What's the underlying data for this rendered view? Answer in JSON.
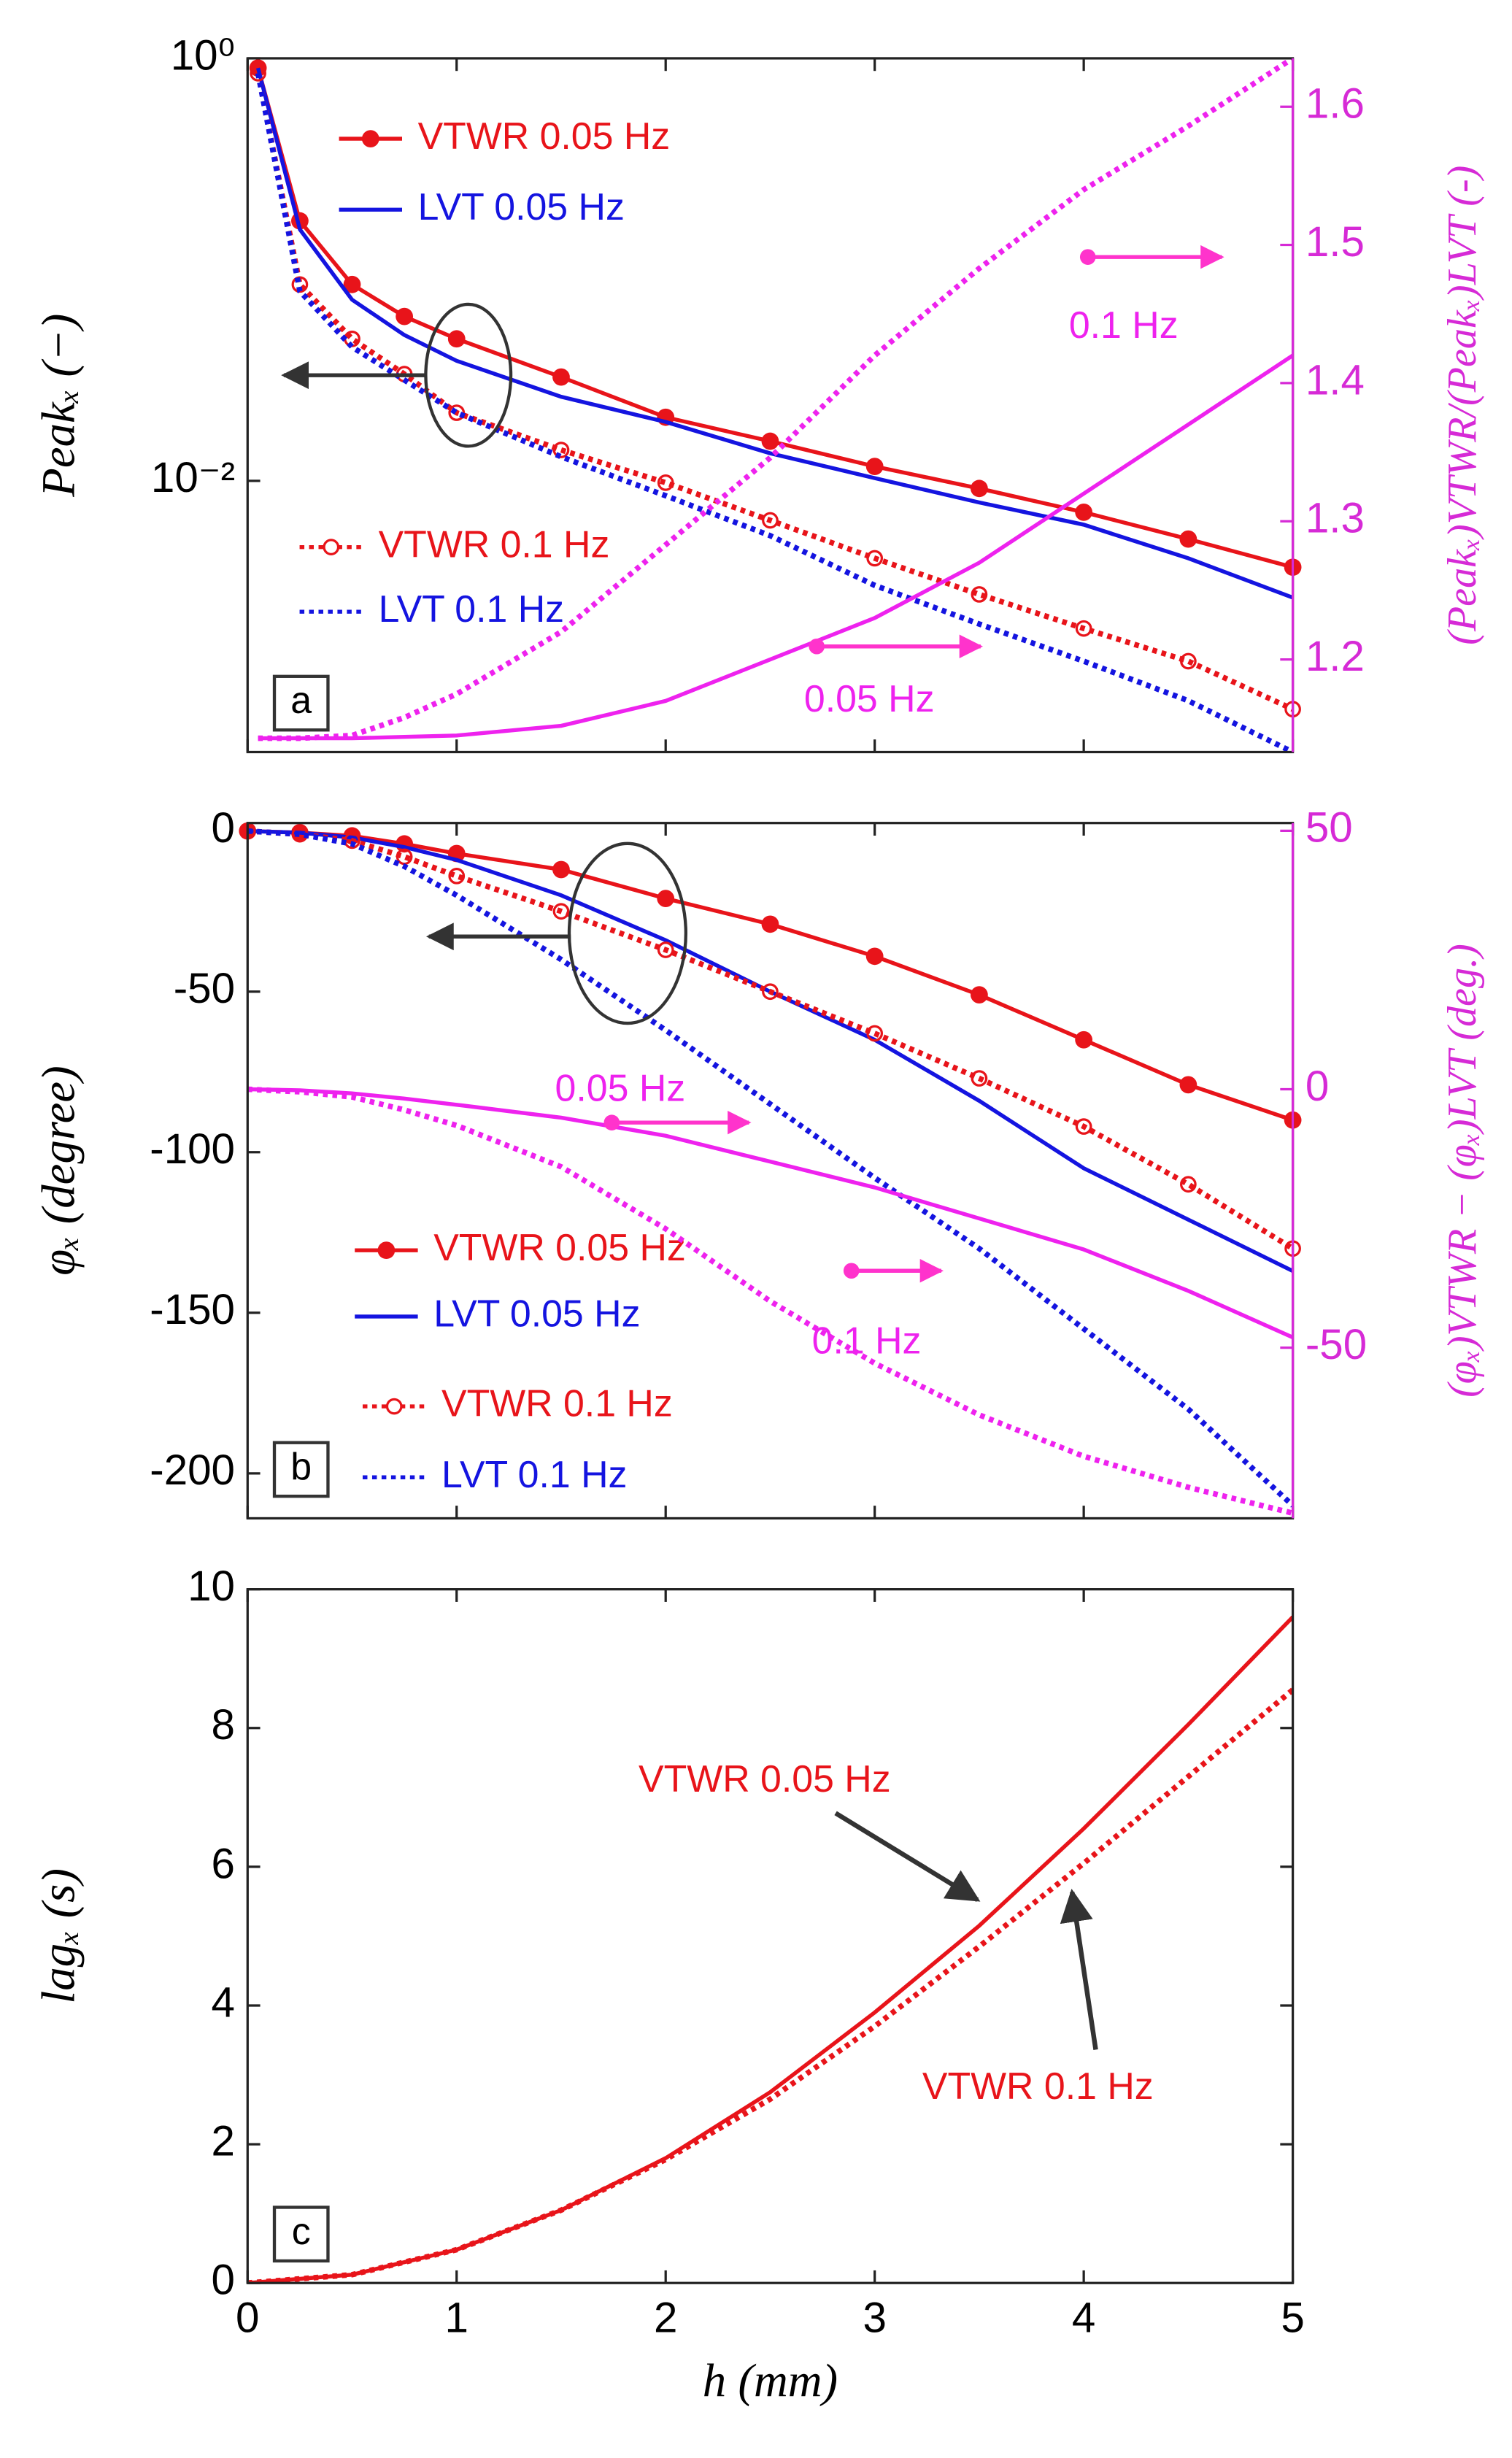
{
  "chart_data": [
    {
      "type": "line",
      "panel_label": "a",
      "ylabel": "Peakₓ (−)",
      "y2label": "(Peakₓ)VTWR/(Peakₓ)LVT (-)",
      "log_y": true,
      "xtick_labels": false,
      "y2color": "#d62ad6",
      "x": [
        0.05,
        0.25,
        0.5,
        0.75,
        1,
        1.5,
        2,
        2.5,
        3,
        3.5,
        4,
        4.5,
        5
      ],
      "xlim": [
        0,
        5
      ],
      "xticks": [
        0,
        1,
        2,
        3,
        4,
        5
      ],
      "ylim": [
        0.00052,
        1
      ],
      "yticks": [
        {
          "value": 1,
          "label": "10⁰"
        },
        {
          "value": 0.01,
          "label": "10⁻²"
        }
      ],
      "y2lim": [
        1.133,
        1.635
      ],
      "y2ticks": [
        1.2,
        1.3,
        1.4,
        1.5,
        1.6
      ],
      "series": [
        {
          "name": "VTWR 0.05 Hz",
          "color": "#e8141a",
          "style": "solid",
          "marker": "filled",
          "axis": "y",
          "values": [
            0.9,
            0.17,
            0.085,
            0.06,
            0.047,
            0.031,
            0.02,
            0.0154,
            0.0117,
            0.0092,
            0.0071,
            0.0053,
            0.0039
          ]
        },
        {
          "name": "LVT 0.05 Hz",
          "color": "#1414e0",
          "style": "solid",
          "marker": "none",
          "axis": "y",
          "values": [
            0.9,
            0.155,
            0.072,
            0.049,
            0.037,
            0.025,
            0.019,
            0.0135,
            0.0103,
            0.0079,
            0.0062,
            0.0043,
            0.0028
          ]
        },
        {
          "name": "VTWR 0.1 Hz",
          "color": "#e8141a",
          "style": "dotted",
          "marker": "open",
          "axis": "y",
          "values": [
            0.85,
            0.085,
            0.047,
            0.032,
            0.021,
            0.014,
            0.0098,
            0.0065,
            0.0043,
            0.0029,
            0.002,
            0.0014,
            0.00083
          ]
        },
        {
          "name": "LVT 0.1 Hz",
          "color": "#1414e0",
          "style": "dotted",
          "marker": "none",
          "axis": "y",
          "values": [
            0.85,
            0.079,
            0.043,
            0.03,
            0.021,
            0.013,
            0.0085,
            0.0055,
            0.0032,
            0.0021,
            0.0014,
            0.00091,
            0.00052
          ]
        },
        {
          "name": "0.05 Hz",
          "color": "#ee22ee",
          "style": "solid",
          "marker": "none",
          "axis": "y2",
          "values": [
            1.143,
            1.143,
            1.143,
            1.144,
            1.145,
            1.152,
            1.17,
            1.2,
            1.23,
            1.27,
            1.32,
            1.37,
            1.42
          ]
        },
        {
          "name": "0.1 Hz",
          "color": "#ee22ee",
          "style": "dotted",
          "marker": "none",
          "axis": "y2",
          "values": [
            1.143,
            1.143,
            1.145,
            1.158,
            1.175,
            1.22,
            1.283,
            1.346,
            1.42,
            1.483,
            1.54,
            1.586,
            1.635
          ]
        }
      ]
    },
    {
      "type": "line",
      "panel_label": "b",
      "ylabel": "φₓ  (degree)",
      "y2label": "(φₓ)VTWR − (φₓ)LVT  (deg.)",
      "log_y": false,
      "xtick_labels": false,
      "y2color": "#d62ad6",
      "x": [
        0,
        0.25,
        0.5,
        0.75,
        1,
        1.5,
        2,
        2.5,
        3,
        3.5,
        4,
        4.5,
        5
      ],
      "xlim": [
        0,
        5
      ],
      "xticks": [
        0,
        1,
        2,
        3,
        4,
        5
      ],
      "ylim": [
        -214,
        2.5
      ],
      "yticks": [
        0,
        -50,
        -100,
        -150,
        -200
      ],
      "y2lim": [
        -83,
        51.5
      ],
      "y2ticks": [
        50,
        0,
        -50
      ],
      "series": [
        {
          "name": "VTWR 0.05 Hz",
          "color": "#e8141a",
          "style": "solid",
          "marker": "filled",
          "axis": "y",
          "values": [
            0,
            -0.5,
            -1.5,
            -4,
            -7,
            -12,
            -21,
            -29,
            -39,
            -51,
            -65,
            -79,
            -90
          ]
        },
        {
          "name": "LVT 0.05 Hz",
          "color": "#1414e0",
          "style": "solid",
          "marker": "none",
          "axis": "y",
          "values": [
            0,
            -0.5,
            -2,
            -5,
            -9,
            -20,
            -34,
            -50,
            -65,
            -84,
            -105,
            -121,
            -137
          ]
        },
        {
          "name": "VTWR 0.1 Hz",
          "color": "#e8141a",
          "style": "dotted",
          "marker": "open",
          "axis": "y",
          "values": [
            0,
            -1,
            -3,
            -8,
            -14,
            -25,
            -37,
            -50,
            -63,
            -77,
            -92,
            -110,
            -130
          ]
        },
        {
          "name": "LVT 0.1 Hz",
          "color": "#1414e0",
          "style": "dotted",
          "marker": "none",
          "axis": "y",
          "values": [
            0,
            -1,
            -4,
            -11,
            -20,
            -40,
            -62,
            -85,
            -108,
            -130,
            -155,
            -180,
            -210
          ]
        },
        {
          "name": "0.05 Hz",
          "color": "#ee22ee",
          "style": "solid",
          "marker": "none",
          "axis": "y2",
          "values": [
            0,
            -0.2,
            -0.8,
            -1.8,
            -3,
            -5.5,
            -9,
            -14,
            -19,
            -25,
            -31,
            -39,
            -48
          ]
        },
        {
          "name": "0.1 Hz",
          "color": "#ee22ee",
          "style": "dotted",
          "marker": "none",
          "axis": "y2",
          "values": [
            0,
            -0.5,
            -1.5,
            -4,
            -7,
            -15,
            -27,
            -41,
            -53,
            -63,
            -71,
            -77,
            -82
          ]
        }
      ]
    },
    {
      "type": "line",
      "panel_label": "c",
      "ylabel": "lagₓ  (s)",
      "xlabel": "h (mm)",
      "log_y": false,
      "xtick_labels": true,
      "x": [
        0,
        0.5,
        1,
        1.5,
        2,
        2.5,
        3,
        3.5,
        4,
        4.5,
        5
      ],
      "xlim": [
        0,
        5
      ],
      "xticks": [
        0,
        1,
        2,
        3,
        4,
        5
      ],
      "ylim": [
        0,
        10
      ],
      "yticks": [
        0,
        2,
        4,
        6,
        8,
        10
      ],
      "series": [
        {
          "name": "VTWR 0.05 Hz",
          "color": "#e8141a",
          "style": "solid",
          "marker": "none",
          "axis": "y",
          "values": [
            0,
            0.12,
            0.48,
            1.05,
            1.8,
            2.75,
            3.9,
            5.15,
            6.55,
            8.05,
            9.6
          ]
        },
        {
          "name": "VTWR 0.1 Hz",
          "color": "#e8141a",
          "style": "dotted",
          "marker": "none",
          "axis": "y",
          "values": [
            0,
            0.12,
            0.48,
            1.05,
            1.78,
            2.65,
            3.7,
            4.85,
            6.05,
            7.3,
            8.55
          ]
        }
      ]
    }
  ]
}
